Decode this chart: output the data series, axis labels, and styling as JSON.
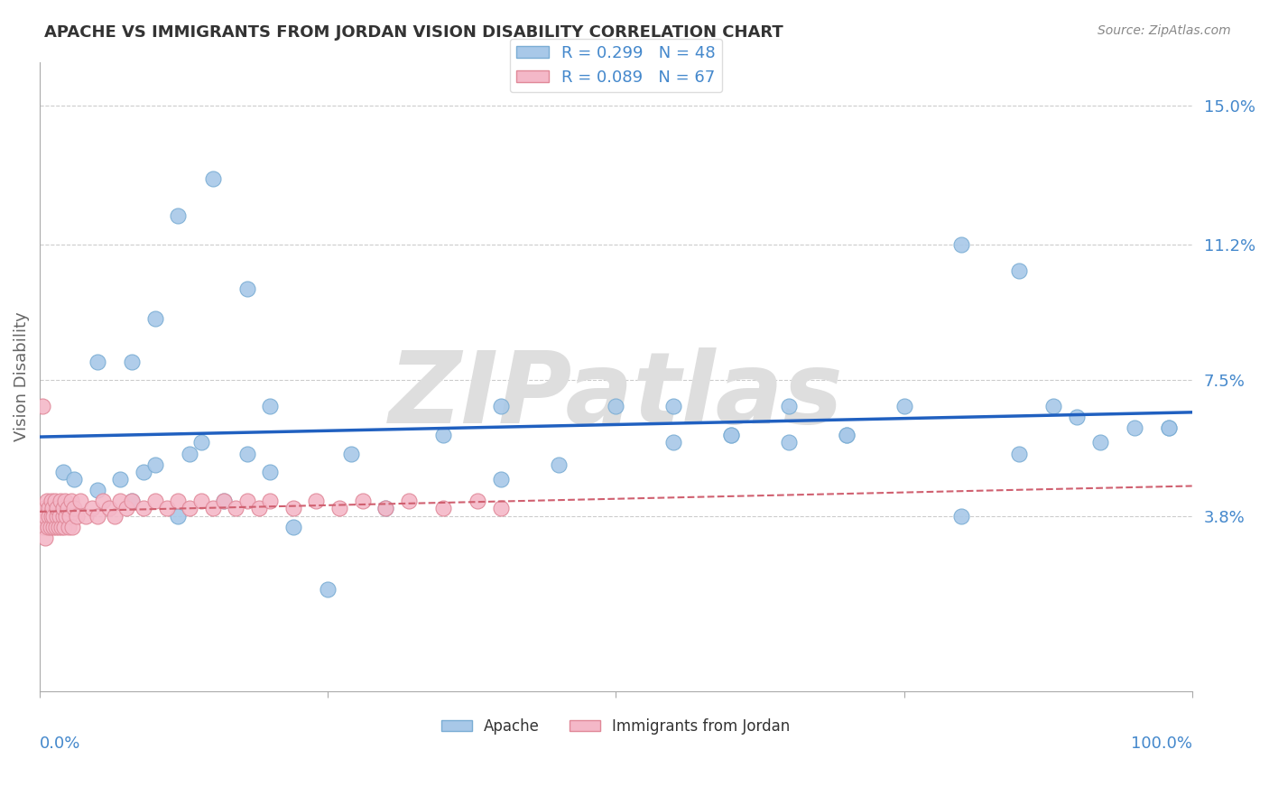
{
  "title": "APACHE VS IMMIGRANTS FROM JORDAN VISION DISABILITY CORRELATION CHART",
  "source": "Source: ZipAtlas.com",
  "ylabel": "Vision Disability",
  "ytick_labels": [
    "3.8%",
    "7.5%",
    "11.2%",
    "15.0%"
  ],
  "ytick_values": [
    0.038,
    0.075,
    0.112,
    0.15
  ],
  "xlim": [
    0.0,
    1.0
  ],
  "ylim": [
    -0.01,
    0.162
  ],
  "legend1_R": "0.299",
  "legend1_N": "48",
  "legend2_R": "0.089",
  "legend2_N": "67",
  "apache_color": "#a8c8e8",
  "apache_edge": "#7aadd4",
  "jordan_color": "#f4b8c8",
  "jordan_edge": "#e08898",
  "blue_line_color": "#2060c0",
  "pink_line_color": "#d06070",
  "apache_x": [
    0.02,
    0.03,
    0.05,
    0.07,
    0.08,
    0.09,
    0.1,
    0.12,
    0.13,
    0.14,
    0.16,
    0.18,
    0.2,
    0.22,
    0.25,
    0.27,
    0.3,
    0.35,
    0.4,
    0.45,
    0.5,
    0.55,
    0.6,
    0.65,
    0.7,
    0.75,
    0.8,
    0.85,
    0.88,
    0.9,
    0.92,
    0.95,
    0.98,
    0.05,
    0.08,
    0.1,
    0.12,
    0.15,
    0.18,
    0.2,
    0.4,
    0.55,
    0.6,
    0.65,
    0.7,
    0.8,
    0.85,
    0.98
  ],
  "apache_y": [
    0.05,
    0.048,
    0.045,
    0.048,
    0.042,
    0.05,
    0.052,
    0.038,
    0.055,
    0.058,
    0.042,
    0.055,
    0.05,
    0.035,
    0.018,
    0.055,
    0.04,
    0.06,
    0.068,
    0.052,
    0.068,
    0.058,
    0.06,
    0.058,
    0.06,
    0.068,
    0.112,
    0.105,
    0.068,
    0.065,
    0.058,
    0.062,
    0.062,
    0.08,
    0.08,
    0.092,
    0.12,
    0.13,
    0.1,
    0.068,
    0.048,
    0.068,
    0.06,
    0.068,
    0.06,
    0.038,
    0.055,
    0.062
  ],
  "jordan_x": [
    0.002,
    0.003,
    0.004,
    0.005,
    0.005,
    0.006,
    0.007,
    0.008,
    0.008,
    0.009,
    0.01,
    0.01,
    0.011,
    0.012,
    0.012,
    0.013,
    0.014,
    0.015,
    0.015,
    0.016,
    0.017,
    0.018,
    0.019,
    0.02,
    0.02,
    0.021,
    0.022,
    0.023,
    0.024,
    0.025,
    0.026,
    0.027,
    0.028,
    0.03,
    0.032,
    0.035,
    0.04,
    0.045,
    0.05,
    0.055,
    0.06,
    0.065,
    0.07,
    0.075,
    0.08,
    0.09,
    0.1,
    0.11,
    0.12,
    0.13,
    0.14,
    0.15,
    0.16,
    0.17,
    0.18,
    0.19,
    0.2,
    0.22,
    0.24,
    0.26,
    0.28,
    0.3,
    0.32,
    0.35,
    0.38,
    0.4,
    0.002
  ],
  "jordan_y": [
    0.038,
    0.035,
    0.04,
    0.032,
    0.038,
    0.042,
    0.035,
    0.04,
    0.038,
    0.035,
    0.042,
    0.038,
    0.04,
    0.035,
    0.038,
    0.042,
    0.035,
    0.038,
    0.04,
    0.035,
    0.038,
    0.042,
    0.035,
    0.038,
    0.04,
    0.035,
    0.042,
    0.038,
    0.04,
    0.035,
    0.038,
    0.042,
    0.035,
    0.04,
    0.038,
    0.042,
    0.038,
    0.04,
    0.038,
    0.042,
    0.04,
    0.038,
    0.042,
    0.04,
    0.042,
    0.04,
    0.042,
    0.04,
    0.042,
    0.04,
    0.042,
    0.04,
    0.042,
    0.04,
    0.042,
    0.04,
    0.042,
    0.04,
    0.042,
    0.04,
    0.042,
    0.04,
    0.042,
    0.04,
    0.042,
    0.04,
    0.068
  ]
}
